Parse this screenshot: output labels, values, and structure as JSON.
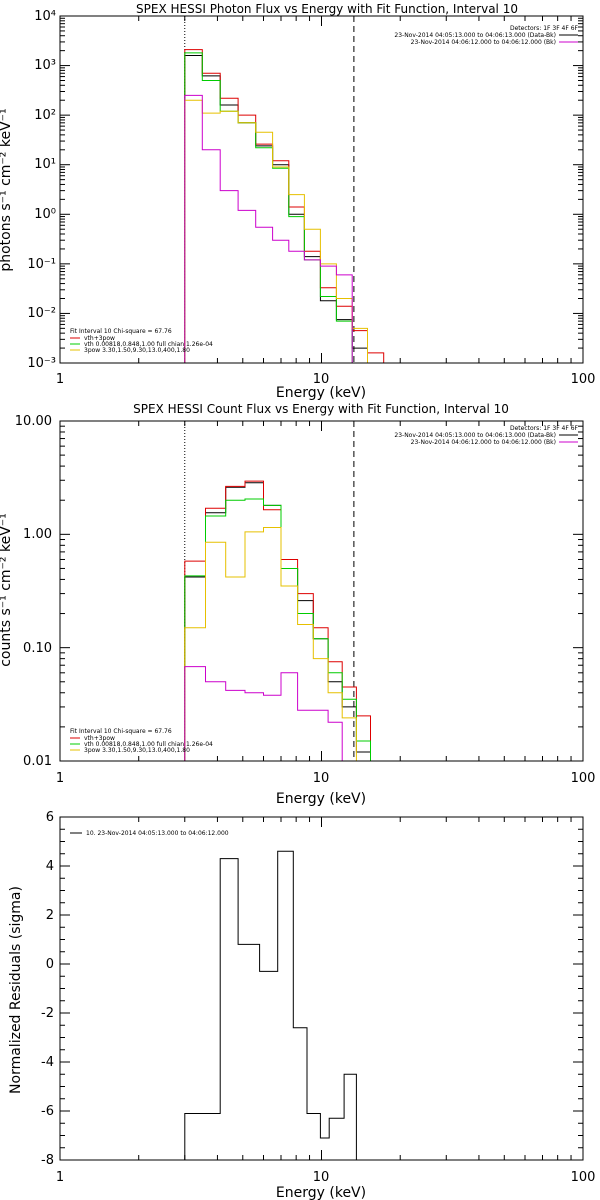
{
  "chart_data": [
    {
      "type": "line",
      "title": "SPEX HESSI Photon Flux vs Energy with Fit Function, Interval 10",
      "xlabel": "Energy (keV)",
      "ylabel": "photons s⁻¹ cm⁻² keV⁻¹",
      "xscale": "log",
      "yscale": "log",
      "xlim": [
        1,
        100
      ],
      "ylim": [
        0.001,
        10000
      ],
      "xticks": [
        "1",
        "10",
        "100"
      ],
      "yticks": [
        "10⁻³",
        "10⁻²",
        "10⁻¹",
        "10⁰",
        "10¹",
        "10²",
        "10³",
        "10⁴"
      ],
      "vlines": [
        {
          "x": 3.0,
          "style": "dotted"
        },
        {
          "x": 13.3,
          "style": "dashed"
        }
      ],
      "info": [
        "Detectors: 1F 3F 4F 6F",
        "23-Nov-2014 04:05:13.000 to 04:06:13.000 (Data-Bk)",
        "23-Nov-2014 04:06:12.000 to 04:06:12.000 (Bk)"
      ],
      "info_colors": [
        "#000000",
        "#cc00cc"
      ],
      "fit_caption": "Fit Interval 10   Chi-square = 67.76",
      "legend": [
        {
          "label": "vth+3pow",
          "color": "#dd0000"
        },
        {
          "label": "vth 0.00818,0.848,1.00  full chian 1.26e-04",
          "color": "#00cc00"
        },
        {
          "label": "3pow 3.30,1.50,9.30,13.0,400,1.80",
          "color": "#e6c000"
        }
      ],
      "bin_edges": [
        3.0,
        3.5,
        4.1,
        4.8,
        5.6,
        6.5,
        7.5,
        8.6,
        9.9,
        11.4,
        13.1,
        15.0,
        17.3
      ],
      "series": [
        {
          "name": "",
          "color": "#000000",
          "values": [
            1600,
            620,
            160,
            70,
            24,
            10,
            1.0,
            0.14,
            0.018,
            0.0075,
            0.002
          ]
        },
        {
          "name": "vth+3pow",
          "color": "#dd0000",
          "values": [
            2100,
            700,
            220,
            100,
            26,
            12,
            1.4,
            0.18,
            0.033,
            0.014,
            0.0045,
            0.0016
          ]
        },
        {
          "name": "vth 0.00818,0.848,1.00  full chian 1.26e-04",
          "color": "#00cc00",
          "values": [
            1800,
            500,
            120,
            70,
            22,
            8.5,
            0.9,
            0.12,
            0.022,
            0.007
          ]
        },
        {
          "name": "3pow 3.30,1.50,9.30,13.0,400,1.80",
          "color": "#e6c000",
          "values": [
            200,
            110,
            120,
            70,
            45,
            9,
            2.5,
            0.5,
            0.1,
            0.02,
            0.005
          ]
        },
        {
          "name": "",
          "color": "#cc00cc",
          "values": [
            250,
            20,
            3,
            1.2,
            0.55,
            0.3,
            0.18,
            0.12,
            0.09,
            0.06
          ]
        }
      ]
    },
    {
      "type": "line",
      "title": "SPEX HESSI Count Flux vs Energy with Fit Function, Interval 10",
      "xlabel": "Energy (keV)",
      "ylabel": "counts s⁻¹ cm⁻² keV⁻¹",
      "xscale": "log",
      "yscale": "log",
      "xlim": [
        1,
        100
      ],
      "ylim": [
        0.01,
        10
      ],
      "xticks": [
        "1",
        "10",
        "100"
      ],
      "yticks": [
        "0.01",
        "0.10",
        "1.00",
        "10.00"
      ],
      "vlines": [
        {
          "x": 3.0,
          "style": "dotted"
        },
        {
          "x": 13.3,
          "style": "dashed"
        }
      ],
      "info": [
        "Detectors: 1F 3F 4F 6F",
        "23-Nov-2014 04:05:13.000 to 04:06:13.000 (Data-Bk)",
        "23-Nov-2014 04:06:12.000 to 04:06:12.000 (Bk)"
      ],
      "info_colors": [
        "#000000",
        "#cc00cc"
      ],
      "fit_caption": "Fit Interval 10   Chi-square = 67.76",
      "legend": [
        {
          "label": "vth+3pow",
          "color": "#dd0000"
        },
        {
          "label": "vth 0.00818,0.848,1.00  full chian 1.26e-04",
          "color": "#00cc00"
        },
        {
          "label": "3pow 3.30,1.50,9.30,13.0,400,1.80",
          "color": "#e6c000"
        }
      ],
      "bin_edges": [
        3.0,
        3.6,
        4.3,
        5.1,
        6.0,
        7.0,
        8.1,
        9.3,
        10.6,
        12.0,
        13.6,
        15.4,
        17.4
      ],
      "series": [
        {
          "name": "",
          "color": "#000000",
          "values": [
            0.42,
            1.55,
            2.6,
            2.85,
            1.8,
            0.5,
            0.26,
            0.12,
            0.05,
            0.03,
            0.012
          ]
        },
        {
          "name": "vth+3pow",
          "color": "#dd0000",
          "values": [
            0.58,
            1.7,
            2.65,
            2.95,
            1.65,
            0.6,
            0.3,
            0.15,
            0.075,
            0.045,
            0.025
          ]
        },
        {
          "name": "vth 0.00818,0.848,1.00  full chian 1.26e-04",
          "color": "#00cc00",
          "values": [
            0.43,
            1.45,
            2.0,
            2.05,
            1.8,
            0.5,
            0.2,
            0.12,
            0.06,
            0.035,
            0.015
          ]
        },
        {
          "name": "3pow 3.30,1.50,9.30,13.0,400,1.80",
          "color": "#e6c000",
          "values": [
            0.15,
            0.85,
            0.42,
            1.05,
            1.15,
            0.35,
            0.16,
            0.08,
            0.04,
            0.024,
            0.01
          ]
        },
        {
          "name": "",
          "color": "#cc00cc",
          "values": [
            0.068,
            0.05,
            0.042,
            0.04,
            0.038,
            0.06,
            0.028,
            0.028,
            0.022
          ]
        }
      ]
    },
    {
      "type": "line",
      "title": "",
      "xlabel": "Energy (keV)",
      "ylabel": "Normalized Residuals (sigma)",
      "xscale": "log",
      "yscale": "linear",
      "xlim": [
        1,
        100
      ],
      "ylim": [
        -8,
        6
      ],
      "xticks": [
        "1",
        "10",
        "100"
      ],
      "yticks": [
        "-8",
        "-6",
        "-4",
        "-2",
        "0",
        "2",
        "4",
        "6"
      ],
      "legend": [
        {
          "label": "10. 23-Nov-2014 04:05:13.000 to 04:06:12.000",
          "color": "#000000"
        }
      ],
      "bin_edges": [
        3.0,
        4.1,
        4.8,
        5.8,
        6.8,
        7.8,
        8.8,
        9.9,
        10.7,
        12.2,
        13.6
      ],
      "series": [
        {
          "name": "10. 23-Nov-2014 04:05:13.000 to 04:06:12.000",
          "color": "#000000",
          "values": [
            -6.1,
            4.3,
            0.8,
            -0.3,
            4.6,
            -2.6,
            -6.1,
            -7.1,
            -6.3,
            -4.5
          ]
        }
      ]
    }
  ]
}
